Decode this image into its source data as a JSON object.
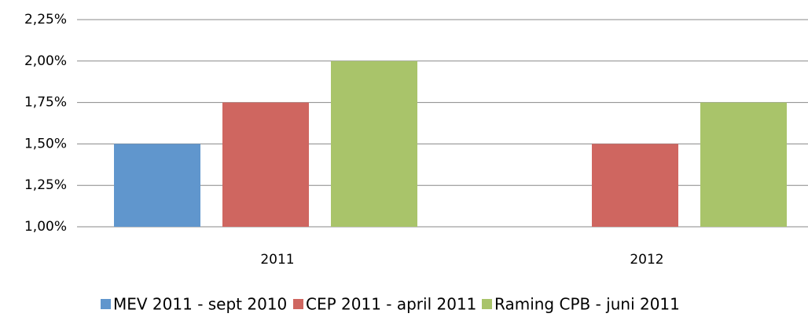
{
  "chart_data": {
    "type": "bar",
    "categories": [
      "2011",
      "2012"
    ],
    "series": [
      {
        "name": "MEV 2011 - sept 2010",
        "color": "#6096cd",
        "values": [
          1.5,
          null
        ]
      },
      {
        "name": "CEP 2011 - april 2011",
        "color": "#cf6660",
        "values": [
          1.75,
          1.5
        ]
      },
      {
        "name": "Raming CPB - juni 2011",
        "color": "#a9c46a",
        "values": [
          2.0,
          1.75
        ]
      }
    ],
    "ylim": [
      1.0,
      2.25
    ],
    "yticks": [
      {
        "value": 1.0,
        "label": "1,00%"
      },
      {
        "value": 1.25,
        "label": "1,25%"
      },
      {
        "value": 1.5,
        "label": "1,50%"
      },
      {
        "value": 1.75,
        "label": "1,75%"
      },
      {
        "value": 2.0,
        "label": "2,00%"
      },
      {
        "value": 2.25,
        "label": "2,25%"
      }
    ],
    "grid": true,
    "legend": "bottom"
  }
}
